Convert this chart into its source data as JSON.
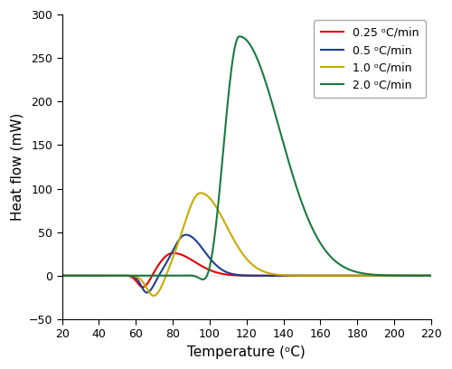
{
  "title": "",
  "xlabel": "Temperature (ᵒC)",
  "ylabel": "Heat flow (mW)",
  "xlim": [
    20,
    220
  ],
  "ylim": [
    -50,
    300
  ],
  "xticks": [
    20,
    40,
    60,
    80,
    100,
    120,
    140,
    160,
    180,
    200,
    220
  ],
  "yticks": [
    -50,
    0,
    50,
    100,
    150,
    200,
    250,
    300
  ],
  "legend_labels": [
    "0.25 ᵒC/min",
    "0.5 ᵒC/min",
    "1.0 ᵒC/min",
    "2.0 ᵒC/min"
  ],
  "colors": [
    "#e00000",
    "#1f3f8f",
    "#ccaa00",
    "#1a7a40"
  ],
  "background_color": "#ffffff",
  "peaks": {
    "red": [
      {
        "mu": 80,
        "amp": 26,
        "sig_l": 7,
        "sig_r": 12
      },
      {
        "mu": 64,
        "amp": -15,
        "sig_l": 3,
        "sig_r": 4
      }
    ],
    "blue": [
      {
        "mu": 87,
        "amp": 47,
        "sig_l": 7,
        "sig_r": 10
      },
      {
        "mu": 66,
        "amp": -20,
        "sig_l": 3,
        "sig_r": 4
      }
    ],
    "yellow": [
      {
        "mu": 95,
        "amp": 95,
        "sig_l": 9,
        "sig_r": 14
      },
      {
        "mu": 70,
        "amp": -25,
        "sig_l": 4,
        "sig_r": 5
      }
    ],
    "green": [
      {
        "mu": 116,
        "amp": 275,
        "sig_l": 8,
        "sig_r": 22
      },
      {
        "mu": 100,
        "amp": -27,
        "sig_l": 4,
        "sig_r": 5
      }
    ]
  },
  "curve_order": [
    "red",
    "blue",
    "yellow",
    "green"
  ]
}
